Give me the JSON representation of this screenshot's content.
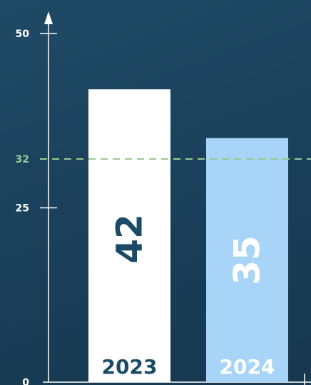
{
  "chart_data": {
    "type": "bar",
    "categories": [
      "2023",
      "2024"
    ],
    "values": [
      42,
      35
    ],
    "ylim": [
      0,
      50
    ],
    "y_ticks": [
      0,
      25,
      50
    ],
    "reference_line": {
      "value": 32,
      "label": "32",
      "style": "dashed"
    },
    "grid": false,
    "legend": "none",
    "colors": {
      "background": "#1c4460",
      "axis": "#ffffff",
      "bar_2023": "#ffffff",
      "bar_2024": "#a7d4f7",
      "label_on_light": "#1b4a66",
      "label_on_blue": "#ffffff",
      "reference": "#9bc98f"
    },
    "y_ticks_text": [
      "0",
      "25",
      "50"
    ],
    "value_labels": [
      "42",
      "35"
    ]
  }
}
